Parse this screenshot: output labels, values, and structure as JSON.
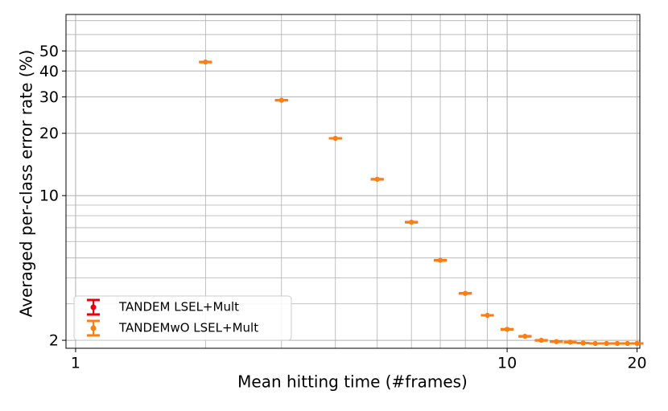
{
  "chart_data": {
    "type": "errorbar",
    "xlabel": "Mean hitting time (#frames)",
    "ylabel": "Averaged per-class error rate (%)",
    "x": [
      2,
      3,
      4,
      5,
      6,
      7,
      8,
      9,
      10,
      11,
      12,
      13,
      14,
      15,
      16,
      17,
      18,
      19,
      20
    ],
    "series": [
      {
        "name": "TANDEM LSEL+Mult",
        "color": "#e8000b",
        "values": [
          44.2,
          28.9,
          18.9,
          12.0,
          7.44,
          4.87,
          3.37,
          2.64,
          2.26,
          2.09,
          2.0,
          1.97,
          1.96,
          1.94,
          1.93,
          1.93,
          1.93,
          1.93,
          1.93
        ]
      },
      {
        "name": "TANDEMwO LSEL+Mult",
        "color": "#ff7f0e",
        "values": [
          44.2,
          28.9,
          18.9,
          12.0,
          7.44,
          4.87,
          3.37,
          2.64,
          2.26,
          2.09,
          2.0,
          1.97,
          1.96,
          1.94,
          1.93,
          1.93,
          1.93,
          1.93,
          1.93
        ]
      }
    ],
    "xscale": "log",
    "yscale": "log",
    "xlim": [
      0.95,
      20.3
    ],
    "ylim": [
      1.83,
      75
    ],
    "xticks": [
      1,
      10,
      20
    ],
    "yticks": [
      2,
      10,
      20,
      30,
      40,
      50
    ],
    "xminorticks": [
      2,
      3,
      4,
      5,
      6,
      7,
      8,
      9
    ],
    "yminorticks": [
      3,
      4,
      5,
      6,
      7,
      8,
      9,
      60,
      70
    ],
    "grid": true,
    "legend": "lower left"
  }
}
